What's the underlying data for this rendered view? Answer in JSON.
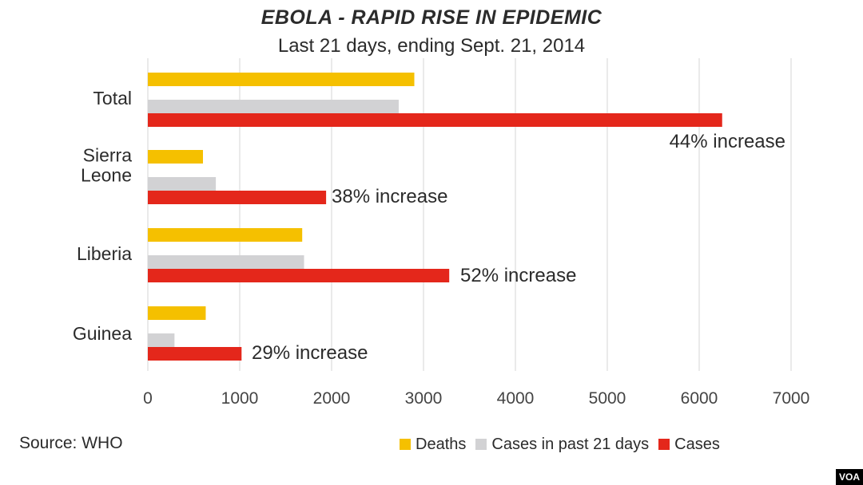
{
  "chart_data": {
    "type": "bar",
    "orientation": "horizontal",
    "title": "EBOLA - RAPID RISE IN EPIDEMIC",
    "subtitle": "Last 21 days, ending Sept. 21, 2014",
    "categories": [
      "Total",
      "Sierra Leone",
      "Liberia",
      "Guinea"
    ],
    "category_lines": [
      [
        "Total"
      ],
      [
        "Sierra",
        "Leone"
      ],
      [
        "Liberia"
      ],
      [
        "Guinea"
      ]
    ],
    "series": [
      {
        "name": "Deaths",
        "color": "#f5c000",
        "values": [
          2900,
          600,
          1680,
          630
        ]
      },
      {
        "name": "Cases in past 21 days",
        "color": "#d2d2d4",
        "values": [
          2730,
          740,
          1700,
          290
        ]
      },
      {
        "name": "Cases",
        "color": "#e4271b",
        "values": [
          6250,
          1940,
          3280,
          1020
        ]
      }
    ],
    "annotations": [
      "44% increase",
      "38% increase",
      "52% increase",
      "29% increase"
    ],
    "xlim": [
      0,
      7000
    ],
    "xticks": [
      0,
      1000,
      2000,
      3000,
      4000,
      5000,
      6000,
      7000
    ],
    "xlabel": "",
    "ylabel": "",
    "grid": "vertical",
    "legend": "bottom-right"
  },
  "source": "Source: WHO",
  "badge": "VOA"
}
